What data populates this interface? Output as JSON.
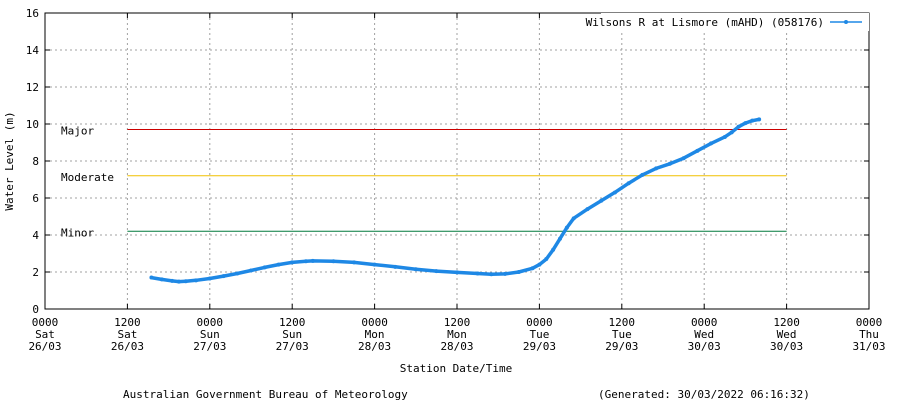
{
  "chart_data": {
    "type": "line",
    "ylabel": "Water Level (m)",
    "xlabel": "Station Date/Time",
    "ylim": [
      0,
      16
    ],
    "yticks": [
      0,
      2,
      4,
      6,
      8,
      10,
      12,
      14,
      16
    ],
    "xlim": [
      "2022-03-26 00:00",
      "2022-03-31 00:00"
    ],
    "xticks": [
      {
        "time": "2022-03-26 00:00",
        "lines": [
          "0000",
          "Sat",
          "26/03"
        ]
      },
      {
        "time": "2022-03-26 12:00",
        "lines": [
          "1200",
          "Sat",
          "26/03"
        ]
      },
      {
        "time": "2022-03-27 00:00",
        "lines": [
          "0000",
          "Sun",
          "27/03"
        ]
      },
      {
        "time": "2022-03-27 12:00",
        "lines": [
          "1200",
          "Sun",
          "27/03"
        ]
      },
      {
        "time": "2022-03-28 00:00",
        "lines": [
          "0000",
          "Mon",
          "28/03"
        ]
      },
      {
        "time": "2022-03-28 12:00",
        "lines": [
          "1200",
          "Mon",
          "28/03"
        ]
      },
      {
        "time": "2022-03-29 00:00",
        "lines": [
          "0000",
          "Tue",
          "29/03"
        ]
      },
      {
        "time": "2022-03-29 12:00",
        "lines": [
          "1200",
          "Tue",
          "29/03"
        ]
      },
      {
        "time": "2022-03-30 00:00",
        "lines": [
          "0000",
          "Wed",
          "30/03"
        ]
      },
      {
        "time": "2022-03-30 12:00",
        "lines": [
          "1200",
          "Wed",
          "30/03"
        ]
      },
      {
        "time": "2022-03-31 00:00",
        "lines": [
          "0000",
          "Thu",
          "31/03"
        ]
      }
    ],
    "grid": true,
    "legend_position": "top-right",
    "thresholds": [
      {
        "label": "Major",
        "value": 9.7,
        "color": "#cc0000",
        "start": "2022-03-26 12:00",
        "end": "2022-03-30 12:00"
      },
      {
        "label": "Moderate",
        "value": 7.2,
        "color": "#f0c000",
        "start": "2022-03-26 12:00",
        "end": "2022-03-30 12:00"
      },
      {
        "label": "Minor",
        "value": 4.2,
        "color": "#007a3d",
        "start": "2022-03-26 12:00",
        "end": "2022-03-30 12:00"
      }
    ],
    "series": [
      {
        "name": "Wilsons R at Lismore (mAHD) (058176)",
        "color": "#1e88e5",
        "points": [
          [
            "2022-03-26 15:30",
            1.7
          ],
          [
            "2022-03-26 17:00",
            1.6
          ],
          [
            "2022-03-26 18:30",
            1.52
          ],
          [
            "2022-03-26 19:30",
            1.48
          ],
          [
            "2022-03-26 20:30",
            1.5
          ],
          [
            "2022-03-26 22:00",
            1.55
          ],
          [
            "2022-03-27 00:00",
            1.65
          ],
          [
            "2022-03-27 02:00",
            1.78
          ],
          [
            "2022-03-27 04:00",
            1.92
          ],
          [
            "2022-03-27 06:00",
            2.08
          ],
          [
            "2022-03-27 08:00",
            2.25
          ],
          [
            "2022-03-27 10:00",
            2.4
          ],
          [
            "2022-03-27 12:00",
            2.52
          ],
          [
            "2022-03-27 14:00",
            2.58
          ],
          [
            "2022-03-27 15:00",
            2.6
          ],
          [
            "2022-03-27 18:00",
            2.58
          ],
          [
            "2022-03-27 21:00",
            2.52
          ],
          [
            "2022-03-28 00:00",
            2.4
          ],
          [
            "2022-03-28 03:00",
            2.28
          ],
          [
            "2022-03-28 06:00",
            2.15
          ],
          [
            "2022-03-28 09:00",
            2.05
          ],
          [
            "2022-03-28 12:00",
            1.98
          ],
          [
            "2022-03-28 15:00",
            1.92
          ],
          [
            "2022-03-28 17:00",
            1.88
          ],
          [
            "2022-03-28 19:00",
            1.9
          ],
          [
            "2022-03-28 21:00",
            2.0
          ],
          [
            "2022-03-28 23:00",
            2.2
          ],
          [
            "2022-03-29 00:00",
            2.4
          ],
          [
            "2022-03-29 01:00",
            2.7
          ],
          [
            "2022-03-29 02:00",
            3.2
          ],
          [
            "2022-03-29 03:00",
            3.8
          ],
          [
            "2022-03-29 04:00",
            4.4
          ],
          [
            "2022-03-29 05:00",
            4.9
          ],
          [
            "2022-03-29 07:00",
            5.4
          ],
          [
            "2022-03-29 09:00",
            5.85
          ],
          [
            "2022-03-29 11:00",
            6.3
          ],
          [
            "2022-03-29 13:00",
            6.8
          ],
          [
            "2022-03-29 15:00",
            7.25
          ],
          [
            "2022-03-29 17:00",
            7.6
          ],
          [
            "2022-03-29 19:00",
            7.85
          ],
          [
            "2022-03-29 21:00",
            8.15
          ],
          [
            "2022-03-29 23:00",
            8.55
          ],
          [
            "2022-03-30 01:00",
            8.95
          ],
          [
            "2022-03-30 03:00",
            9.3
          ],
          [
            "2022-03-30 04:00",
            9.55
          ],
          [
            "2022-03-30 05:00",
            9.85
          ],
          [
            "2022-03-30 06:00",
            10.05
          ],
          [
            "2022-03-30 07:00",
            10.18
          ],
          [
            "2022-03-30 08:00",
            10.25
          ]
        ]
      }
    ]
  },
  "footer": {
    "source": "Australian Government Bureau of Meteorology",
    "generated": "(Generated: 30/03/2022 06:16:32)"
  }
}
